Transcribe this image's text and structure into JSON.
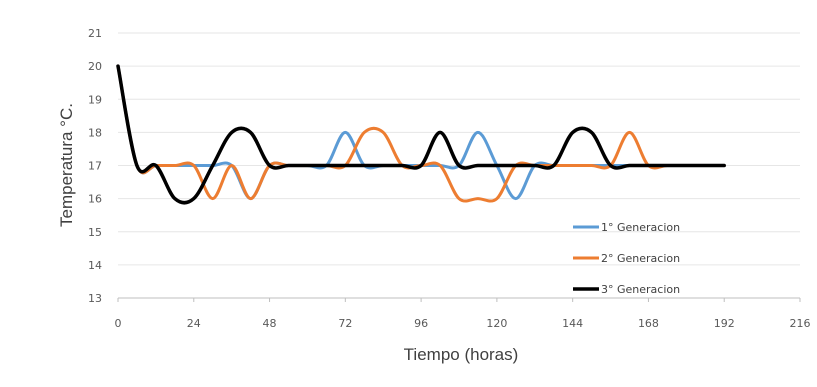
{
  "chart_data": {
    "type": "line",
    "xlabel": "Tiempo (horas)",
    "ylabel": "Temperatura °C.",
    "xlim": [
      0,
      216
    ],
    "ylim": [
      13,
      21
    ],
    "x_ticks": [
      0,
      24,
      48,
      72,
      96,
      120,
      144,
      168,
      192,
      216
    ],
    "y_ticks": [
      13,
      14,
      15,
      16,
      17,
      18,
      19,
      20,
      21
    ],
    "grid": "horizontal",
    "legend_position": "right",
    "series": [
      {
        "name": "1° Generacion",
        "color": "#5B9BD5",
        "x": [
          0,
          6,
          12,
          18,
          24,
          30,
          36,
          42,
          48,
          54,
          60,
          66,
          72,
          78,
          84,
          90,
          96,
          102,
          108,
          114,
          120,
          126,
          132,
          138,
          144,
          150,
          156,
          162,
          168,
          174,
          180,
          186,
          192
        ],
        "y": [
          20,
          17,
          17,
          17,
          17,
          17,
          17,
          16,
          17,
          17,
          17,
          17,
          18,
          17,
          17,
          17,
          17,
          17,
          17,
          18,
          17,
          16,
          17,
          17,
          17,
          17,
          17,
          17,
          17,
          17,
          17,
          17,
          17
        ]
      },
      {
        "name": "2° Generacion",
        "color": "#ED7D31",
        "x": [
          0,
          6,
          12,
          18,
          24,
          30,
          36,
          42,
          48,
          54,
          60,
          66,
          72,
          78,
          84,
          90,
          96,
          102,
          108,
          114,
          120,
          126,
          132,
          138,
          144,
          150,
          156,
          162,
          168,
          174,
          180,
          186,
          192
        ],
        "y": [
          20,
          17,
          17,
          17,
          17,
          16,
          17,
          16,
          17,
          17,
          17,
          17,
          17,
          18,
          18,
          17,
          17,
          17,
          16,
          16,
          16,
          17,
          17,
          17,
          17,
          17,
          17,
          18,
          17,
          17,
          17,
          17,
          17
        ]
      },
      {
        "name": "3° Generacion",
        "color": "#000000",
        "x": [
          0,
          6,
          12,
          18,
          24,
          30,
          36,
          42,
          48,
          54,
          60,
          66,
          72,
          78,
          84,
          90,
          96,
          102,
          108,
          114,
          120,
          126,
          132,
          138,
          144,
          150,
          156,
          162,
          168,
          174,
          180,
          186,
          192
        ],
        "y": [
          20,
          17,
          17,
          16,
          16,
          17,
          18,
          18,
          17,
          17,
          17,
          17,
          17,
          17,
          17,
          17,
          17,
          18,
          17,
          17,
          17,
          17,
          17,
          17,
          18,
          18,
          17,
          17,
          17,
          17,
          17,
          17,
          17
        ]
      }
    ]
  }
}
